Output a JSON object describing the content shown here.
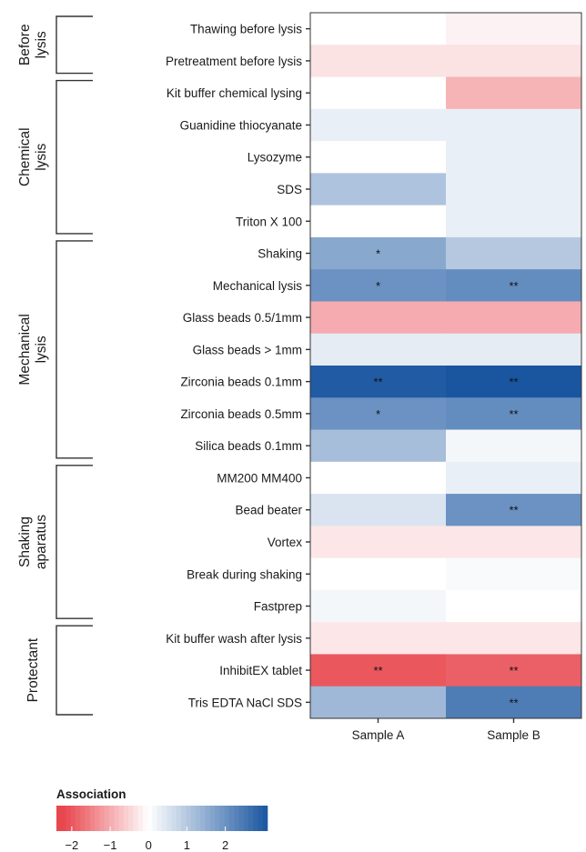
{
  "chart_data": {
    "type": "heatmap",
    "columns": [
      "Sample A",
      "Sample B"
    ],
    "rows": [
      "Thawing before lysis",
      "Pretreatment before lysis",
      "Kit buffer chemical lysing",
      "Guanidine thiocyanate",
      "Lysozyme",
      "SDS",
      "Triton X 100",
      "Shaking",
      "Mechanical lysis",
      "Glass beads 0.5/1mm",
      "Glass beads > 1mm",
      "Zirconia beads 0.1mm",
      "Zirconia beads 0.5mm",
      "Silica beads 0.1mm",
      "MM200 MM400",
      "Bead beater",
      "Vortex",
      "Break during shaking",
      "Fastprep",
      "Kit buffer wash after lysis",
      "InhibitEX tablet",
      "Tris EDTA NaCl SDS"
    ],
    "values": [
      [
        0.0,
        -0.15
      ],
      [
        -0.35,
        -0.35
      ],
      [
        0.0,
        -0.9
      ],
      [
        0.3,
        0.3
      ],
      [
        0.0,
        0.3
      ],
      [
        1.1,
        0.3
      ],
      [
        0.0,
        0.3
      ],
      [
        1.6,
        1.0
      ],
      [
        2.0,
        2.1
      ],
      [
        -1.0,
        -1.0
      ],
      [
        0.35,
        0.35
      ],
      [
        3.0,
        3.1
      ],
      [
        2.0,
        2.1
      ],
      [
        1.2,
        0.15
      ],
      [
        0.0,
        0.3
      ],
      [
        0.5,
        2.0
      ],
      [
        -0.3,
        -0.3
      ],
      [
        0.0,
        0.1
      ],
      [
        0.15,
        0.0
      ],
      [
        -0.3,
        -0.3
      ],
      [
        -2.0,
        -1.9
      ],
      [
        1.3,
        2.4
      ]
    ],
    "significance": [
      [
        "",
        ""
      ],
      [
        "",
        ""
      ],
      [
        "",
        ""
      ],
      [
        "",
        ""
      ],
      [
        "",
        ""
      ],
      [
        "",
        ""
      ],
      [
        "",
        ""
      ],
      [
        "*",
        ""
      ],
      [
        "*",
        "**"
      ],
      [
        "",
        ""
      ],
      [
        "",
        ""
      ],
      [
        "**",
        "**"
      ],
      [
        "*",
        "**"
      ],
      [
        "",
        ""
      ],
      [
        "",
        ""
      ],
      [
        "",
        "**"
      ],
      [
        "",
        ""
      ],
      [
        "",
        ""
      ],
      [
        "",
        ""
      ],
      [
        "",
        ""
      ],
      [
        "**",
        "**"
      ],
      [
        "",
        "**"
      ]
    ],
    "groups": [
      {
        "label": [
          "Before",
          "lysis"
        ],
        "start": 0,
        "end": 1
      },
      {
        "label": [
          "Chemical",
          "lysis"
        ],
        "start": 2,
        "end": 6
      },
      {
        "label": [
          "Mechanical",
          "lysis"
        ],
        "start": 7,
        "end": 13
      },
      {
        "label": [
          "Shaking",
          "aparatus"
        ],
        "start": 14,
        "end": 18
      },
      {
        "label": [
          "Protectant"
        ],
        "start": 19,
        "end": 21
      }
    ],
    "legend": {
      "title": "Association",
      "ticks": [
        -2,
        -1,
        0,
        1,
        2
      ],
      "tick_labels": [
        "−2",
        "−1",
        "0",
        "1",
        "2"
      ],
      "range": [
        -2.4,
        3.1
      ],
      "position": "bottom-left"
    },
    "colors": {
      "negative": "#e8474e",
      "neutral": "#ffffff",
      "positive": "#1a56a0"
    }
  }
}
